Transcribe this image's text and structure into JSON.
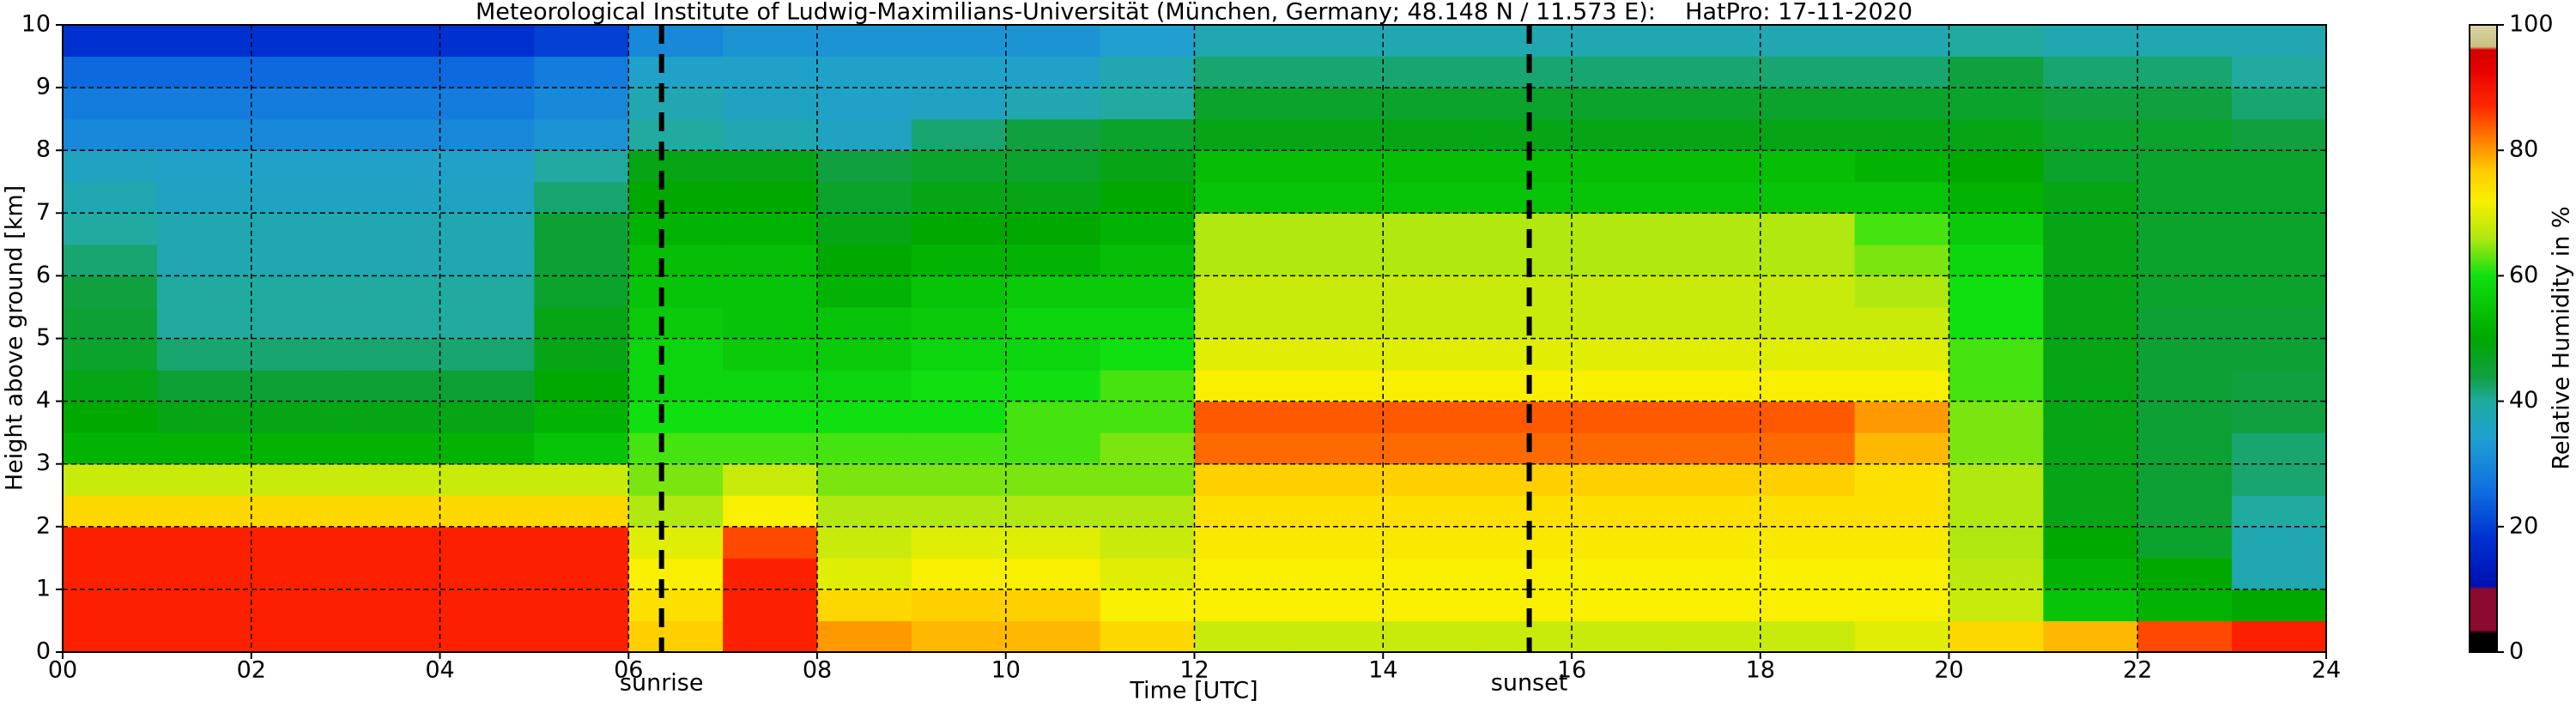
{
  "chart_data": {
    "type": "heatmap",
    "title": "Meteorological Institute of Ludwig-Maximilians-Universität (München, Germany; 48.148 N / 11.573 E):    HatPro: 17-11-2020",
    "x_label": "Time [UTC]",
    "y_label": "Height above ground [km]",
    "colorbar_label": "Relative Humidity in %",
    "x": [
      0.5,
      1.5,
      2.5,
      3.5,
      4.5,
      5.5,
      6.5,
      7.5,
      8.5,
      9.5,
      10.5,
      11.5,
      12.5,
      13.5,
      14.5,
      15.5,
      16.5,
      17.5,
      18.5,
      19.5,
      20.5,
      21.5,
      22.5,
      23.5
    ],
    "y": [
      0.25,
      0.75,
      1.25,
      1.75,
      2.25,
      2.75,
      3.25,
      3.75,
      4.25,
      4.75,
      5.25,
      5.75,
      6.25,
      6.75,
      7.25,
      7.75,
      8.25,
      8.75,
      9.25,
      9.75
    ],
    "z": [
      [
        88,
        88,
        88,
        88,
        75,
        68,
        52,
        50,
        48,
        46,
        45,
        44,
        42,
        40,
        38,
        36,
        30,
        28,
        25,
        18
      ],
      [
        88,
        88,
        88,
        88,
        75,
        68,
        52,
        48,
        45,
        42,
        40,
        40,
        38,
        38,
        36,
        35,
        30,
        28,
        25,
        18
      ],
      [
        88,
        88,
        88,
        88,
        75,
        68,
        52,
        48,
        45,
        42,
        40,
        40,
        38,
        38,
        36,
        35,
        30,
        28,
        25,
        18
      ],
      [
        88,
        88,
        88,
        88,
        75,
        68,
        52,
        48,
        45,
        42,
        40,
        40,
        38,
        38,
        36,
        35,
        30,
        28,
        25,
        18
      ],
      [
        88,
        88,
        88,
        88,
        75,
        68,
        52,
        48,
        45,
        42,
        40,
        40,
        38,
        38,
        36,
        35,
        30,
        28,
        25,
        18
      ],
      [
        88,
        88,
        88,
        88,
        75,
        68,
        55,
        52,
        50,
        48,
        48,
        46,
        45,
        45,
        42,
        40,
        32,
        30,
        28,
        20
      ],
      [
        76,
        74,
        72,
        70,
        66,
        64,
        62,
        60,
        58,
        58,
        56,
        55,
        54,
        52,
        50,
        48,
        40,
        38,
        35,
        30
      ],
      [
        88,
        88,
        88,
        85,
        72,
        68,
        62,
        60,
        58,
        56,
        55,
        55,
        54,
        52,
        50,
        48,
        38,
        36,
        35,
        32
      ],
      [
        80,
        75,
        70,
        68,
        66,
        64,
        62,
        60,
        58,
        56,
        55,
        52,
        50,
        48,
        46,
        44,
        36,
        35,
        35,
        32
      ],
      [
        78,
        76,
        72,
        70,
        66,
        64,
        62,
        60,
        60,
        58,
        56,
        55,
        52,
        50,
        48,
        46,
        42,
        36,
        35,
        32
      ],
      [
        78,
        76,
        72,
        70,
        66,
        64,
        62,
        62,
        60,
        58,
        58,
        56,
        52,
        50,
        48,
        46,
        44,
        38,
        35,
        32
      ],
      [
        75,
        72,
        70,
        68,
        66,
        64,
        64,
        62,
        62,
        60,
        58,
        56,
        54,
        52,
        50,
        48,
        46,
        40,
        38,
        34
      ],
      [
        68,
        72,
        72,
        73,
        74,
        76,
        83,
        84,
        72,
        70,
        68,
        68,
        66,
        66,
        55,
        54,
        48,
        46,
        42,
        38
      ],
      [
        68,
        72,
        72,
        73,
        74,
        76,
        83,
        84,
        72,
        70,
        68,
        68,
        66,
        66,
        55,
        54,
        48,
        46,
        42,
        38
      ],
      [
        68,
        72,
        72,
        73,
        74,
        76,
        83,
        84,
        72,
        70,
        68,
        68,
        66,
        66,
        55,
        54,
        48,
        46,
        42,
        38
      ],
      [
        68,
        72,
        72,
        73,
        74,
        76,
        83,
        84,
        72,
        70,
        68,
        68,
        66,
        66,
        55,
        54,
        48,
        46,
        42,
        38
      ],
      [
        68,
        72,
        72,
        73,
        74,
        76,
        83,
        84,
        72,
        70,
        68,
        68,
        66,
        66,
        55,
        54,
        48,
        46,
        42,
        38
      ],
      [
        68,
        72,
        72,
        73,
        74,
        76,
        83,
        84,
        72,
        70,
        68,
        68,
        66,
        66,
        55,
        54,
        48,
        46,
        42,
        38
      ],
      [
        68,
        72,
        72,
        73,
        74,
        76,
        83,
        84,
        72,
        70,
        68,
        68,
        66,
        66,
        55,
        54,
        48,
        46,
        42,
        38
      ],
      [
        70,
        72,
        72,
        73,
        74,
        74,
        78,
        80,
        72,
        70,
        68,
        66,
        64,
        62,
        55,
        52,
        48,
        46,
        42,
        38
      ],
      [
        75,
        68,
        67,
        66,
        66,
        66,
        64,
        64,
        62,
        62,
        60,
        60,
        58,
        56,
        52,
        50,
        48,
        46,
        44,
        40
      ],
      [
        78,
        55,
        52,
        50,
        48,
        48,
        48,
        48,
        48,
        48,
        48,
        48,
        48,
        48,
        48,
        46,
        46,
        44,
        42,
        38
      ],
      [
        85,
        52,
        50,
        46,
        45,
        45,
        45,
        45,
        45,
        45,
        45,
        46,
        46,
        46,
        46,
        46,
        46,
        44,
        42,
        38
      ],
      [
        88,
        50,
        38,
        38,
        40,
        42,
        42,
        44,
        44,
        45,
        45,
        46,
        46,
        46,
        46,
        46,
        44,
        42,
        40,
        38
      ]
    ],
    "xlim": [
      0,
      24
    ],
    "ylim": [
      0,
      10
    ],
    "xticks": [
      {
        "value": 0,
        "label": "00"
      },
      {
        "value": 2,
        "label": "02"
      },
      {
        "value": 4,
        "label": "04"
      },
      {
        "value": 6,
        "label": "06"
      },
      {
        "value": 8,
        "label": "08"
      },
      {
        "value": 10,
        "label": "10"
      },
      {
        "value": 12,
        "label": "12"
      },
      {
        "value": 14,
        "label": "14"
      },
      {
        "value": 16,
        "label": "16"
      },
      {
        "value": 18,
        "label": "18"
      },
      {
        "value": 20,
        "label": "20"
      },
      {
        "value": 22,
        "label": "22"
      },
      {
        "value": 24,
        "label": "24"
      }
    ],
    "yticks": [
      0,
      1,
      2,
      3,
      4,
      5,
      6,
      7,
      8,
      9,
      10
    ],
    "clim": [
      0,
      100
    ],
    "cticks": [
      0,
      20,
      40,
      60,
      80,
      100
    ],
    "grid": true,
    "colorscale": [
      {
        "value": 0,
        "color": "#000000"
      },
      {
        "value": 3,
        "color": "#000000"
      },
      {
        "value": 3.5,
        "color": "#8a0a30"
      },
      {
        "value": 10,
        "color": "#8a0a30"
      },
      {
        "value": 10.5,
        "color": "#0010b0"
      },
      {
        "value": 18,
        "color": "#0030d0"
      },
      {
        "value": 26,
        "color": "#1070e0"
      },
      {
        "value": 34,
        "color": "#20a0d0"
      },
      {
        "value": 40,
        "color": "#20aaa0"
      },
      {
        "value": 44,
        "color": "#10a040"
      },
      {
        "value": 50,
        "color": "#00a800"
      },
      {
        "value": 60,
        "color": "#10e010"
      },
      {
        "value": 66,
        "color": "#b0e810"
      },
      {
        "value": 72,
        "color": "#f8f000"
      },
      {
        "value": 77,
        "color": "#ffc800"
      },
      {
        "value": 82,
        "color": "#ff7a00"
      },
      {
        "value": 87,
        "color": "#ff2800"
      },
      {
        "value": 93,
        "color": "#e80000"
      },
      {
        "value": 96,
        "color": "#d00000"
      },
      {
        "value": 96.5,
        "color": "#c8c080"
      },
      {
        "value": 100,
        "color": "#dcd4a8"
      }
    ],
    "events": [
      {
        "x": 6.35,
        "label": "sunrise"
      },
      {
        "x": 15.55,
        "label": "sunset"
      }
    ]
  }
}
